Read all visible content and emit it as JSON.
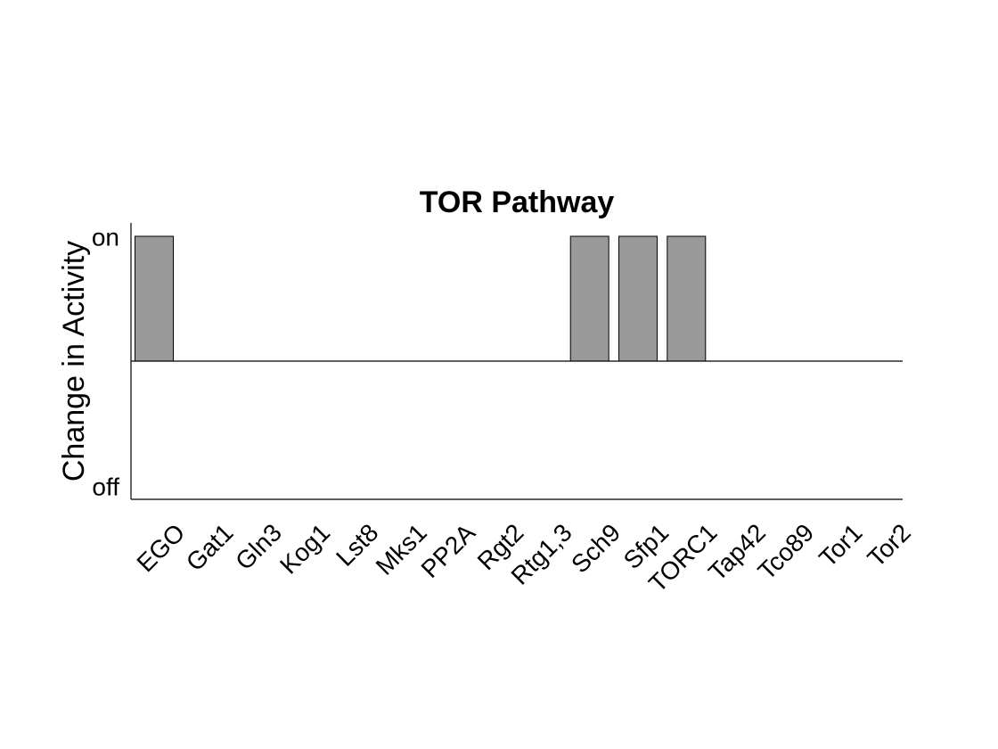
{
  "chart_data": {
    "type": "bar",
    "title": "TOR Pathway",
    "xlabel": "",
    "ylabel": "Change in Activity",
    "categories": [
      "EGO",
      "Gat1",
      "Gln3",
      "Kog1",
      "Lst8",
      "Mks1",
      "PP2A",
      "Rgt2",
      "Rtg1,3",
      "Sch9",
      "Sfp1",
      "TORC1",
      "Tap42",
      "Tco89",
      "Tor1",
      "Tor2"
    ],
    "values": [
      1,
      0,
      0,
      0,
      0,
      0,
      0,
      0,
      0,
      1,
      1,
      1,
      0,
      0,
      0,
      0
    ],
    "yticks": [
      {
        "value": 1,
        "label": "on"
      },
      {
        "value": -1,
        "label": "off"
      }
    ],
    "ylim": [
      -1.1,
      1.1
    ],
    "bar_color": "#999999",
    "grid": false
  }
}
